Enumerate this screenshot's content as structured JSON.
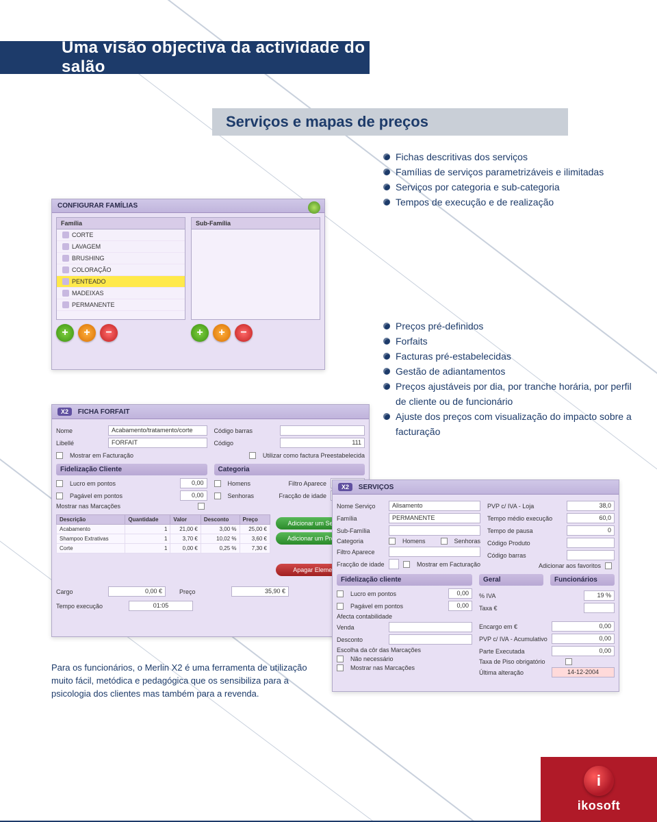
{
  "colors": {
    "navy": "#1d3b6a",
    "panel_bg": "#e8e0f4",
    "panel_border": "#b0a8c8",
    "highlight": "#ffe94a",
    "brand_red": "#b01a28"
  },
  "header": {
    "title": "Uma visão objectiva da actividade do salão"
  },
  "subtitle": {
    "text": "Serviços e mapas de preços"
  },
  "bullets_top": [
    "Fichas descritivas dos serviços",
    "Famílias de serviços parametrizáveis e ilimitadas",
    "Serviços por categoria e sub-categoria",
    "Tempos de execução e de realização"
  ],
  "bullets_mid": [
    "Preços pré-definidos",
    "Forfaits",
    "Facturas pré-estabelecidas",
    "Gestão de adiantamentos",
    "Preços ajustáveis por dia, por tranche horária, por perfil de cliente ou de funcionário",
    "Ajuste dos preços com visualização do impacto sobre a facturação"
  ],
  "paragraph": "Para os funcionários, o Merlin X2 é uma ferramenta de utilização muito fácil, metódica e pedagógica que os sensibiliza para a psicologia dos clientes mas também para a revenda.",
  "shot1": {
    "title": "CONFIGURAR FAMÍLIAS",
    "col1_header": "Família",
    "col2_header": "Sub-Família",
    "families": [
      "CORTE",
      "LAVAGEM",
      "BRUSHING",
      "COLORAÇÃO",
      "PENTEADO",
      "MADEIXAS",
      "PERMANENTE"
    ],
    "selected_index": 4
  },
  "shot2": {
    "badge": "X2",
    "title": "FICHA FORFAIT",
    "labels": {
      "nome": "Nome",
      "libelle": "Libellé",
      "cod_barras": "Código barras",
      "codigo": "Código",
      "mostrar_fact": "Mostrar em Facturação",
      "utilizar_preest": "Utilizar como factura Preestabelecida",
      "fidel_section": "Fidelização Cliente",
      "cat_section": "Categoria",
      "lucro_pontos": "Lucro em pontos",
      "pagavel_pontos": "Pagável em pontos",
      "mostrar_marc": "Mostrar nas Marcações",
      "homens": "Homens",
      "senhoras": "Senhoras",
      "filtro": "Filtro Aparece",
      "fraccao": "Fracção de idade"
    },
    "nome_value": "Acabamento/tratamento/corte",
    "libelle_value": "FORFAIT",
    "codigo_value": "111",
    "pontos1": "0,00",
    "pontos2": "0,00",
    "table": {
      "headers": [
        "Descrição",
        "Quantidade",
        "Valor",
        "Desconto",
        "Preço"
      ],
      "rows": [
        [
          "Acabamento",
          "1",
          "21,00 €",
          "3,00 %",
          "25,00 €"
        ],
        [
          "Shampoo Extrativas",
          "1",
          "3,70 €",
          "10,02 %",
          "3,60 €"
        ],
        [
          "Corte",
          "1",
          "0,00 €",
          "0,25 %",
          "7,30 €"
        ]
      ]
    },
    "btn_add_service": "Adicionar um Serviço",
    "btn_add_product": "Adicionar um Produto",
    "btn_delete": "Apagar Elemento",
    "footer": {
      "cargo_label": "Cargo",
      "cargo_value": "0,00 €",
      "preco_label": "Preço",
      "preco_value": "35,90 €",
      "tempo_label": "Tempo execução",
      "tempo_value": "01:05"
    }
  },
  "shot3": {
    "badge": "X2",
    "title": "SERVIÇOS",
    "labels": {
      "nome_servico": "Nome Serviço",
      "familia": "Família",
      "sub_familia": "Sub-Família",
      "categoria": "Categoria",
      "homens": "Homens",
      "senhoras": "Senhoras",
      "filtro": "Filtro Aparece",
      "fraccao": "Fracção de idade",
      "mostrar_fact": "Mostrar em Facturação",
      "pvp_loja": "PVP c/ IVA - Loja",
      "tempo_medio": "Tempo médio execução",
      "tempo_pausa": "Tempo de pausa",
      "codigo_produto": "Código Produto",
      "codigo_barras": "Código barras",
      "add_fav": "Adicionar aos favoritos",
      "fidel_section": "Fidelização cliente",
      "lucro_pontos": "Lucro em pontos",
      "pagavel_pontos": "Pagável em pontos",
      "afeta": "Afecta contabilidade",
      "venda": "Venda",
      "desconto": "Desconto",
      "escolha_cor": "Escolha da côr das Marcações",
      "nao_necessario": "Não necessário",
      "mostrar_marc": "Mostrar nas Marcações",
      "geral": "Geral",
      "funcionarios": "Funcionários",
      "pct_iva": "% IVA",
      "taxa": "Taxa €",
      "encargo": "Encargo em €",
      "pvp_2": "PVP c/ IVA - Acumulativo",
      "parte_exec": "Parte Executada",
      "taxa_piso": "Taxa de Piso obrigatório",
      "ultima_alt": "Última alteração"
    },
    "values": {
      "nome_servico": "Alisamento",
      "familia": "PERMANENTE",
      "pvp_loja": "38,0",
      "tempo_medio": "60,0",
      "tempo_pausa": "0",
      "pontos1": "0,00",
      "pontos2": "0,00",
      "pct_iva": "19 %",
      "encargo": "0,00",
      "pvp_2": "0,00",
      "parte_exec": "0,00",
      "ultima_alt": "14-12-2004"
    }
  },
  "brand": {
    "letter": "i",
    "name": "ikosoft"
  }
}
